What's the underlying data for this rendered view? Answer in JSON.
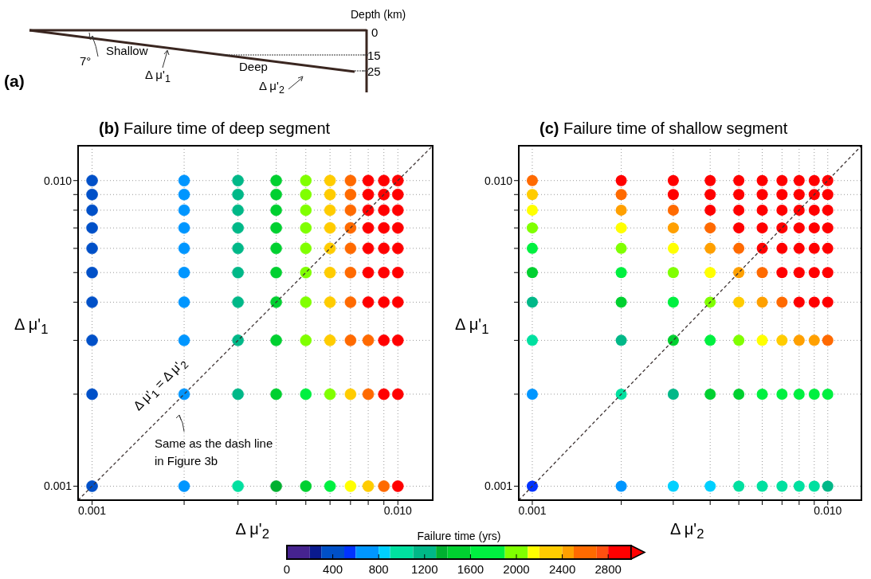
{
  "chart_data": [
    {
      "type": "other",
      "title": "(a)",
      "annotations": [
        "Depth (km)",
        "0",
        "15",
        "25",
        "7°",
        "Shallow",
        "Δ μ'$_{1}$",
        "Deep",
        "Δ μ'$_{2}$"
      ]
    },
    {
      "type": "scatter",
      "title": "(b) Failure time of deep segment",
      "xlabel": "Δ μ'$_{2}$",
      "ylabel": "Δ μ'$_{1}$",
      "log": "xy",
      "xlim": [
        0.0009,
        0.013
      ],
      "ylim": [
        0.0009,
        0.013
      ],
      "xticks": [
        0.001,
        {
          "value": 0.002,
          "label": null
        },
        {
          "value": 0.003,
          "label": null
        },
        {
          "value": 0.004,
          "label": null
        },
        {
          "value": 0.005,
          "label": null
        },
        {
          "value": 0.006,
          "label": null
        },
        {
          "value": 0.007,
          "label": null
        },
        {
          "value": 0.008,
          "label": null
        },
        {
          "value": 0.009,
          "label": null
        },
        {
          "value": 0.01,
          "label": "0.010"
        }
      ],
      "yticks": [
        0.001,
        {
          "value": 0.002,
          "label": null
        },
        {
          "value": 0.003,
          "label": null
        },
        {
          "value": 0.004,
          "label": null
        },
        {
          "value": 0.005,
          "label": null
        },
        {
          "value": 0.006,
          "label": null
        },
        {
          "value": 0.007,
          "label": null
        },
        {
          "value": 0.008,
          "label": null
        },
        {
          "value": 0.009,
          "label": null
        },
        {
          "value": 0.01,
          "label": "0.010"
        }
      ],
      "grid": true,
      "clabel": "Failure time (yrs)",
      "clim": [
        0,
        3000
      ],
      "cticks": [
        0,
        400,
        800,
        1200,
        1600,
        2000,
        2400,
        2800
      ],
      "annotations": [
        "Δ μ'$_{1}$ = Δ μ'$_{2}$",
        "Same as the dash line in Figure 3b"
      ],
      "series": [
        {
          "type": "scatter",
          "marker": "circle",
          "x": [
            0.001,
            0.002,
            0.003,
            0.004,
            0.005,
            0.006,
            0.007,
            0.008,
            0.009,
            0.01,
            0.001,
            0.002,
            0.003,
            0.004,
            0.005,
            0.006,
            0.007,
            0.008,
            0.009,
            0.01,
            0.001,
            0.002,
            0.003,
            0.004,
            0.005,
            0.006,
            0.007,
            0.008,
            0.009,
            0.01,
            0.001,
            0.002,
            0.003,
            0.004,
            0.005,
            0.006,
            0.007,
            0.008,
            0.009,
            0.01,
            0.001,
            0.002,
            0.003,
            0.004,
            0.005,
            0.006,
            0.007,
            0.008,
            0.009,
            0.01,
            0.001,
            0.002,
            0.003,
            0.004,
            0.005,
            0.006,
            0.007,
            0.008,
            0.009,
            0.01,
            0.001,
            0.002,
            0.003,
            0.004,
            0.005,
            0.006,
            0.007,
            0.008,
            0.009,
            0.01,
            0.001,
            0.002,
            0.003,
            0.004,
            0.005,
            0.006,
            0.007,
            0.008,
            0.009,
            0.01,
            0.001,
            0.002,
            0.003,
            0.004,
            0.005,
            0.006,
            0.007,
            0.008,
            0.009,
            0.01,
            0.001,
            0.002,
            0.003,
            0.004,
            0.005,
            0.006,
            0.007,
            0.008,
            0.009,
            0.01
          ],
          "values": [
            0.01,
            0.01,
            0.01,
            0.01,
            0.01,
            0.01,
            0.01,
            0.01,
            0.01,
            0.01,
            0.009,
            0.009,
            0.009,
            0.009,
            0.009,
            0.009,
            0.009,
            0.009,
            0.009,
            0.009,
            0.008,
            0.008,
            0.008,
            0.008,
            0.008,
            0.008,
            0.008,
            0.008,
            0.008,
            0.008,
            0.007,
            0.007,
            0.007,
            0.007,
            0.007,
            0.007,
            0.007,
            0.007,
            0.007,
            0.007,
            0.006,
            0.006,
            0.006,
            0.006,
            0.006,
            0.006,
            0.006,
            0.006,
            0.006,
            0.006,
            0.005,
            0.005,
            0.005,
            0.005,
            0.005,
            0.005,
            0.005,
            0.005,
            0.005,
            0.005,
            0.004,
            0.004,
            0.004,
            0.004,
            0.004,
            0.004,
            0.004,
            0.004,
            0.004,
            0.004,
            0.003,
            0.003,
            0.003,
            0.003,
            0.003,
            0.003,
            0.003,
            0.003,
            0.003,
            0.003,
            0.002,
            0.002,
            0.002,
            0.002,
            0.002,
            0.002,
            0.002,
            0.002,
            0.002,
            0.002,
            0.001,
            0.001,
            0.001,
            0.001,
            0.001,
            0.001,
            0.001,
            0.001,
            0.001,
            0.001
          ],
          "colors": [
            "#0050c8",
            "#0096ff",
            "#00b888",
            "#00d030",
            "#80ff00",
            "#ffcc00",
            "#ff6a00",
            "#ff0000",
            "#ff0000",
            "#ff0000",
            "#0050c8",
            "#0096ff",
            "#00b888",
            "#00d030",
            "#80ff00",
            "#ffcc00",
            "#ff6a00",
            "#ff0000",
            "#ff0000",
            "#ff0000",
            "#0050c8",
            "#0096ff",
            "#00b888",
            "#00d030",
            "#80ff00",
            "#ffcc00",
            "#ff6a00",
            "#ff0000",
            "#ff0000",
            "#ff0000",
            "#0050c8",
            "#0096ff",
            "#00b888",
            "#00d030",
            "#80ff00",
            "#ffcc00",
            "#ff6a00",
            "#ff0000",
            "#ff0000",
            "#ff0000",
            "#0050c8",
            "#0096ff",
            "#00b888",
            "#00d030",
            "#80ff00",
            "#ffcc00",
            "#ff6a00",
            "#ff0000",
            "#ff0000",
            "#ff0000",
            "#0050c8",
            "#0096ff",
            "#00b888",
            "#00d030",
            "#80ff00",
            "#ffcc00",
            "#ff6a00",
            "#ff0000",
            "#ff0000",
            "#ff0000",
            "#0050c8",
            "#0096ff",
            "#00b888",
            "#00d030",
            "#80ff00",
            "#ffcc00",
            "#ff6a00",
            "#ff0000",
            "#ff0000",
            "#ff0000",
            "#0050c8",
            "#0096ff",
            "#00b888",
            "#00d030",
            "#80ff00",
            "#ffcc00",
            "#ff6a00",
            "#ff6a00",
            "#ff0000",
            "#ff0000",
            "#0050c8",
            "#0096ff",
            "#00b888",
            "#00d030",
            "#00f040",
            "#80ff00",
            "#ffcc00",
            "#ff6a00",
            "#ff0000",
            "#ff0000",
            "#0050c8",
            "#0096ff",
            "#00e0a0",
            "#00b030",
            "#00d030",
            "#00f040",
            "#ffff00",
            "#ffcc00",
            "#ff6a00",
            "#ff0000"
          ],
          "cvalues": [
            400,
            700,
            1200,
            1500,
            2000,
            2300,
            2600,
            2900,
            2900,
            2900,
            400,
            700,
            1200,
            1500,
            2000,
            2300,
            2600,
            2900,
            2900,
            2900,
            400,
            700,
            1200,
            1500,
            2000,
            2300,
            2600,
            2900,
            2900,
            2900,
            400,
            700,
            1200,
            1500,
            2000,
            2300,
            2600,
            2900,
            2900,
            2900,
            400,
            700,
            1200,
            1500,
            2000,
            2300,
            2600,
            2900,
            2900,
            2900,
            400,
            700,
            1200,
            1500,
            2000,
            2300,
            2600,
            2900,
            2900,
            2900,
            400,
            700,
            1200,
            1500,
            2000,
            2300,
            2600,
            2900,
            2900,
            2900,
            400,
            700,
            1200,
            1500,
            2000,
            2300,
            2600,
            2600,
            2900,
            2900,
            400,
            700,
            1200,
            1500,
            1750,
            2000,
            2300,
            2600,
            2900,
            2900,
            400,
            700,
            1000,
            1350,
            1500,
            1750,
            2150,
            2300,
            2600,
            2900
          ]
        },
        {
          "type": "line",
          "marker": "none",
          "x": [
            0.0009,
            0.013
          ],
          "values": [
            0.0009,
            0.013
          ],
          "color": "#3c3232",
          "line_style": "dashed"
        }
      ]
    },
    {
      "type": "scatter",
      "title": "(c) Failure time of shallow segment",
      "xlabel": "Δ μ'$_{2}$",
      "ylabel": "Δ μ'$_{1}$",
      "log": "xy",
      "xlim": [
        0.0009,
        0.013
      ],
      "ylim": [
        0.0009,
        0.013
      ],
      "xticks": [
        0.001,
        {
          "value": 0.002,
          "label": null
        },
        {
          "value": 0.003,
          "label": null
        },
        {
          "value": 0.004,
          "label": null
        },
        {
          "value": 0.005,
          "label": null
        },
        {
          "value": 0.006,
          "label": null
        },
        {
          "value": 0.007,
          "label": null
        },
        {
          "value": 0.008,
          "label": null
        },
        {
          "value": 0.009,
          "label": null
        },
        {
          "value": 0.01,
          "label": "0.010"
        }
      ],
      "yticks": [
        0.001,
        {
          "value": 0.002,
          "label": null
        },
        {
          "value": 0.003,
          "label": null
        },
        {
          "value": 0.004,
          "label": null
        },
        {
          "value": 0.005,
          "label": null
        },
        {
          "value": 0.006,
          "label": null
        },
        {
          "value": 0.007,
          "label": null
        },
        {
          "value": 0.008,
          "label": null
        },
        {
          "value": 0.009,
          "label": null
        },
        {
          "value": 0.01,
          "label": "0.010"
        }
      ],
      "grid": true,
      "series": [
        {
          "type": "scatter",
          "marker": "circle",
          "x": [
            0.001,
            0.002,
            0.003,
            0.004,
            0.005,
            0.006,
            0.007,
            0.008,
            0.009,
            0.01,
            0.001,
            0.002,
            0.003,
            0.004,
            0.005,
            0.006,
            0.007,
            0.008,
            0.009,
            0.01,
            0.001,
            0.002,
            0.003,
            0.004,
            0.005,
            0.006,
            0.007,
            0.008,
            0.009,
            0.01,
            0.001,
            0.002,
            0.003,
            0.004,
            0.005,
            0.006,
            0.007,
            0.008,
            0.009,
            0.01,
            0.001,
            0.002,
            0.003,
            0.004,
            0.005,
            0.006,
            0.007,
            0.008,
            0.009,
            0.01,
            0.001,
            0.002,
            0.003,
            0.004,
            0.005,
            0.006,
            0.007,
            0.008,
            0.009,
            0.01,
            0.001,
            0.002,
            0.003,
            0.004,
            0.005,
            0.006,
            0.007,
            0.008,
            0.009,
            0.01,
            0.001,
            0.002,
            0.003,
            0.004,
            0.005,
            0.006,
            0.007,
            0.008,
            0.009,
            0.01,
            0.001,
            0.002,
            0.003,
            0.004,
            0.005,
            0.006,
            0.007,
            0.008,
            0.009,
            0.01,
            0.001,
            0.002,
            0.003,
            0.004,
            0.005,
            0.006,
            0.007,
            0.008,
            0.009,
            0.01
          ],
          "values": [
            0.01,
            0.01,
            0.01,
            0.01,
            0.01,
            0.01,
            0.01,
            0.01,
            0.01,
            0.01,
            0.009,
            0.009,
            0.009,
            0.009,
            0.009,
            0.009,
            0.009,
            0.009,
            0.009,
            0.009,
            0.008,
            0.008,
            0.008,
            0.008,
            0.008,
            0.008,
            0.008,
            0.008,
            0.008,
            0.008,
            0.007,
            0.007,
            0.007,
            0.007,
            0.007,
            0.007,
            0.007,
            0.007,
            0.007,
            0.007,
            0.006,
            0.006,
            0.006,
            0.006,
            0.006,
            0.006,
            0.006,
            0.006,
            0.006,
            0.006,
            0.005,
            0.005,
            0.005,
            0.005,
            0.005,
            0.005,
            0.005,
            0.005,
            0.005,
            0.005,
            0.004,
            0.004,
            0.004,
            0.004,
            0.004,
            0.004,
            0.004,
            0.004,
            0.004,
            0.004,
            0.003,
            0.003,
            0.003,
            0.003,
            0.003,
            0.003,
            0.003,
            0.003,
            0.003,
            0.003,
            0.002,
            0.002,
            0.002,
            0.002,
            0.002,
            0.002,
            0.002,
            0.002,
            0.002,
            0.002,
            0.001,
            0.001,
            0.001,
            0.001,
            0.001,
            0.001,
            0.001,
            0.001,
            0.001,
            0.001
          ],
          "colors": [
            "#ff6a00",
            "#ff0000",
            "#ff0000",
            "#ff0000",
            "#ff0000",
            "#ff0000",
            "#ff0000",
            "#ff0000",
            "#ff0000",
            "#ff0000",
            "#ffcc00",
            "#ff6a00",
            "#ff0000",
            "#ff0000",
            "#ff0000",
            "#ff0000",
            "#ff0000",
            "#ff0000",
            "#ff0000",
            "#ff0000",
            "#ffff00",
            "#ffa000",
            "#ff6a00",
            "#ff0000",
            "#ff0000",
            "#ff0000",
            "#ff0000",
            "#ff0000",
            "#ff0000",
            "#ff0000",
            "#80ff00",
            "#ffff00",
            "#ffa000",
            "#ff6a00",
            "#ff0000",
            "#ff0000",
            "#ff0000",
            "#ff0000",
            "#ff0000",
            "#ff0000",
            "#00f040",
            "#80ff00",
            "#ffff00",
            "#ffa000",
            "#ff6a00",
            "#ff0000",
            "#ff0000",
            "#ff0000",
            "#ff0000",
            "#ff0000",
            "#00d030",
            "#00f040",
            "#80ff00",
            "#ffff00",
            "#ffa000",
            "#ff6a00",
            "#ff0000",
            "#ff0000",
            "#ff0000",
            "#ff0000",
            "#00b888",
            "#00d030",
            "#00f040",
            "#80ff00",
            "#ffcc00",
            "#ffa000",
            "#ff6a00",
            "#ff0000",
            "#ff0000",
            "#ff0000",
            "#00e0a0",
            "#00b888",
            "#00d030",
            "#00f040",
            "#80ff00",
            "#ffff00",
            "#ffcc00",
            "#ffa000",
            "#ffa000",
            "#ff6a00",
            "#0096ff",
            "#00e0a0",
            "#00b888",
            "#00d030",
            "#00d030",
            "#00f040",
            "#00f040",
            "#00f040",
            "#00f040",
            "#00f040",
            "#0033ff",
            "#0096ff",
            "#00d0ff",
            "#00d0ff",
            "#00e0a0",
            "#00e0a0",
            "#00e0a0",
            "#00e0a0",
            "#00e0a0",
            "#00b888"
          ]
        },
        {
          "type": "line",
          "marker": "none",
          "x": [
            0.0009,
            0.013
          ],
          "values": [
            0.0009,
            0.013
          ],
          "color": "#3c3232",
          "line_style": "dashed"
        }
      ]
    }
  ]
}
